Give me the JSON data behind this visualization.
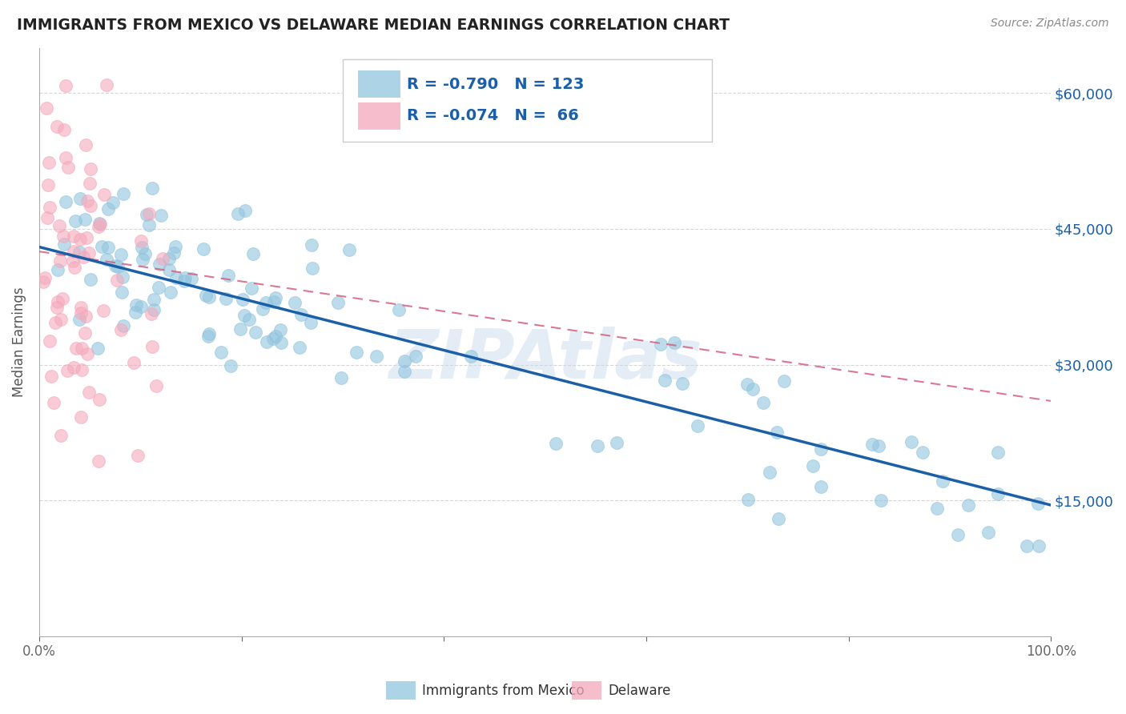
{
  "title": "IMMIGRANTS FROM MEXICO VS DELAWARE MEDIAN EARNINGS CORRELATION CHART",
  "source": "Source: ZipAtlas.com",
  "ylabel": "Median Earnings",
  "y_ticks": [
    15000,
    30000,
    45000,
    60000
  ],
  "y_tick_labels": [
    "$15,000",
    "$30,000",
    "$45,000",
    "$60,000"
  ],
  "y_min": 0,
  "y_max": 65000,
  "x_min": 0.0,
  "x_max": 1.0,
  "blue_R": -0.79,
  "blue_N": 123,
  "pink_R": -0.074,
  "pink_N": 66,
  "blue_color": "#92c5de",
  "pink_color": "#f4a9bb",
  "blue_line_color": "#1a5fa8",
  "pink_line_color": "#d46080",
  "legend_label_blue": "Immigrants from Mexico",
  "legend_label_pink": "Delaware",
  "blue_line_x0": 0.0,
  "blue_line_y0": 43000,
  "blue_line_x1": 1.0,
  "blue_line_y1": 14500,
  "pink_line_x0": 0.0,
  "pink_line_y0": 42500,
  "pink_line_x1": 1.0,
  "pink_line_y1": 26000
}
